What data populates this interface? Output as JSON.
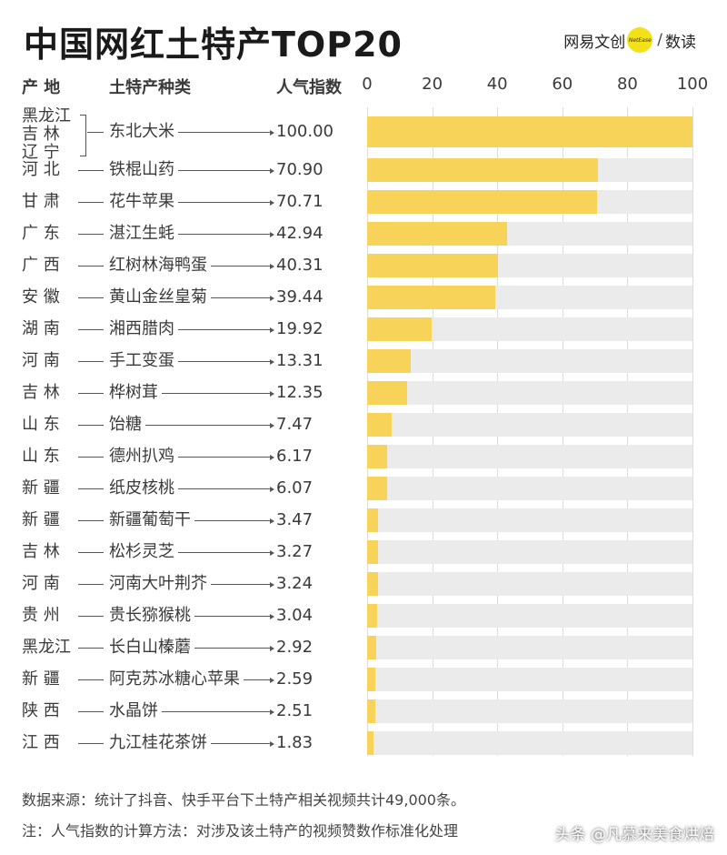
{
  "header": {
    "title": "中国网红土特产TOP20",
    "brand_name": "网易文创",
    "brand_logo_text": "NetEase",
    "brand_sub": "数读"
  },
  "columns": {
    "origin": "产  地",
    "item": "土特产种类",
    "index": "人气指数"
  },
  "chart_data": {
    "type": "bar",
    "orientation": "horizontal",
    "title": "中国网红土特产TOP20",
    "xlim": [
      0,
      100
    ],
    "ticks": [
      0,
      20,
      40,
      60,
      80,
      100
    ],
    "grid": true,
    "bar_color": "#f8d35a",
    "track_color": "#ebebeb",
    "rows": [
      {
        "origin": [
          "黑龙江",
          "吉  林",
          "辽  宁"
        ],
        "item": "东北大米",
        "value": 100.0,
        "value_label": "100.00"
      },
      {
        "origin": [
          "河  北"
        ],
        "item": "铁棍山药",
        "value": 70.9,
        "value_label": "70.90"
      },
      {
        "origin": [
          "甘  肃"
        ],
        "item": "花牛苹果",
        "value": 70.71,
        "value_label": "70.71"
      },
      {
        "origin": [
          "广  东"
        ],
        "item": "湛江生蚝",
        "value": 42.94,
        "value_label": "42.94"
      },
      {
        "origin": [
          "广  西"
        ],
        "item": "红树林海鸭蛋",
        "value": 40.31,
        "value_label": "40.31"
      },
      {
        "origin": [
          "安  徽"
        ],
        "item": "黄山金丝皇菊",
        "value": 39.44,
        "value_label": "39.44"
      },
      {
        "origin": [
          "湖  南"
        ],
        "item": "湘西腊肉",
        "value": 19.92,
        "value_label": "19.92"
      },
      {
        "origin": [
          "河  南"
        ],
        "item": "手工变蛋",
        "value": 13.31,
        "value_label": "13.31"
      },
      {
        "origin": [
          "吉  林"
        ],
        "item": "桦树茸",
        "value": 12.35,
        "value_label": "12.35"
      },
      {
        "origin": [
          "山  东"
        ],
        "item": "饴糖",
        "value": 7.47,
        "value_label": "7.47"
      },
      {
        "origin": [
          "山  东"
        ],
        "item": "德州扒鸡",
        "value": 6.17,
        "value_label": "6.17"
      },
      {
        "origin": [
          "新  疆"
        ],
        "item": "纸皮核桃",
        "value": 6.07,
        "value_label": "6.07"
      },
      {
        "origin": [
          "新  疆"
        ],
        "item": "新疆葡萄干",
        "value": 3.47,
        "value_label": "3.47"
      },
      {
        "origin": [
          "吉  林"
        ],
        "item": "松杉灵芝",
        "value": 3.27,
        "value_label": "3.27"
      },
      {
        "origin": [
          "河  南"
        ],
        "item": "河南大叶荆芥",
        "value": 3.24,
        "value_label": "3.24"
      },
      {
        "origin": [
          "贵  州"
        ],
        "item": "贵长猕猴桃",
        "value": 3.04,
        "value_label": "3.04"
      },
      {
        "origin": [
          "黑龙江"
        ],
        "item": "长白山榛蘑",
        "value": 2.92,
        "value_label": "2.92"
      },
      {
        "origin": [
          "新  疆"
        ],
        "item": "阿克苏冰糖心苹果",
        "value": 2.59,
        "value_label": "2.59"
      },
      {
        "origin": [
          "陕  西"
        ],
        "item": "水晶饼",
        "value": 2.51,
        "value_label": "2.51"
      },
      {
        "origin": [
          "江  西"
        ],
        "item": "九江桂花茶饼",
        "value": 1.83,
        "value_label": "1.83"
      }
    ]
  },
  "footer": {
    "source": "数据来源：统计了抖音、快手平台下土特产相关视频共计49,000条。",
    "note": "注：人气指数的计算方法：对涉及该土特产的视频赞数作标准化处理",
    "watermark": "头条 @凡慕来美食烘焙"
  }
}
